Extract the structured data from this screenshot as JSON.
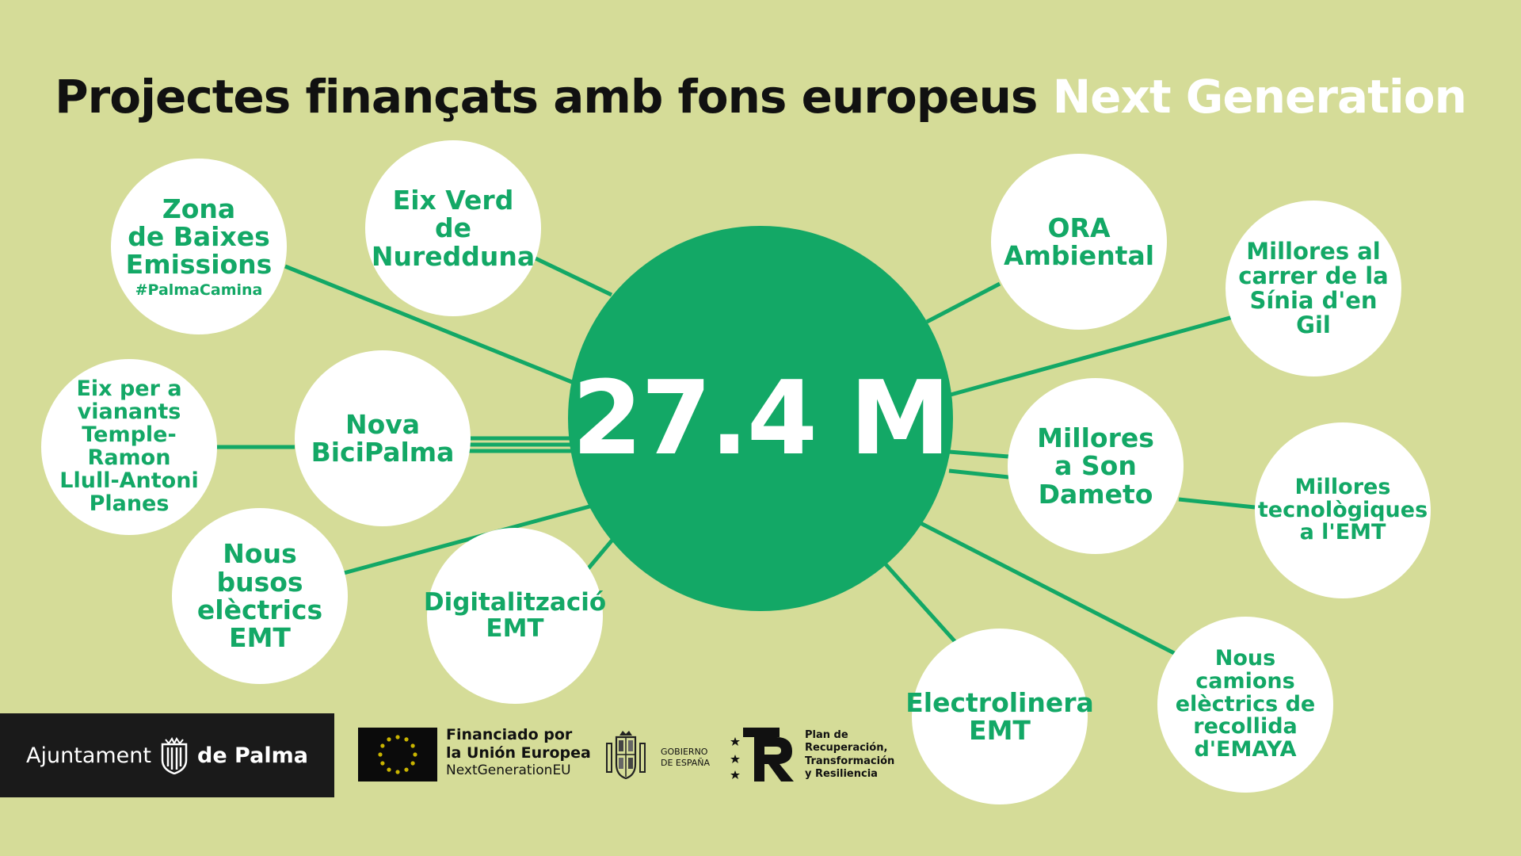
{
  "title": {
    "main": "Projectes finançats amb fons europeus",
    "highlight": "Next Generation"
  },
  "total": "27.4 M",
  "projects": [
    {
      "lines": [
        "Zona",
        "de Baixes",
        "Emissions"
      ],
      "sub": "#PalmaCamina"
    },
    {
      "lines": [
        "Eix Verd de",
        "Nuredduna"
      ]
    },
    {
      "lines": [
        "ORA",
        "Ambiental"
      ]
    },
    {
      "lines": [
        "Millores al",
        "carrer de la",
        "Sínia d'en Gil"
      ]
    },
    {
      "lines": [
        "Eix per a",
        "vianants",
        "Temple-Ramon",
        "Llull-Antoni",
        "Planes"
      ]
    },
    {
      "lines": [
        "Nova",
        "BiciPalma"
      ]
    },
    {
      "lines": [
        "Millores",
        "a Son",
        "Dameto"
      ]
    },
    {
      "lines": [
        "Millores",
        "tecnològiques",
        "a l'EMT"
      ]
    },
    {
      "lines": [
        "Nous busos",
        "elèctrics",
        "EMT"
      ]
    },
    {
      "lines": [
        "Digitalització",
        "EMT"
      ]
    },
    {
      "lines": [
        "Electrolinera",
        "EMT"
      ]
    },
    {
      "lines": [
        "Nous camions",
        "elèctrics de",
        "recollida",
        "d'EMAYA"
      ]
    }
  ],
  "footer": {
    "ajuntament_left": "Ajuntament",
    "ajuntament_right": "de Palma",
    "eu_line1": "Financiado por",
    "eu_line2": "la Unión Europea",
    "eu_line3": "NextGenerationEU",
    "gobierno_line1": "GOBIERNO",
    "gobierno_line2": "DE ESPAÑA",
    "plan_line1": "Plan de",
    "plan_line2": "Recuperación,",
    "plan_line3": "Transformación",
    "plan_line4": "y Resiliencia"
  },
  "colors": {
    "background": "#d5dc98",
    "accent": "#13a866",
    "node": "#ffffff",
    "line": "#13a866"
  }
}
